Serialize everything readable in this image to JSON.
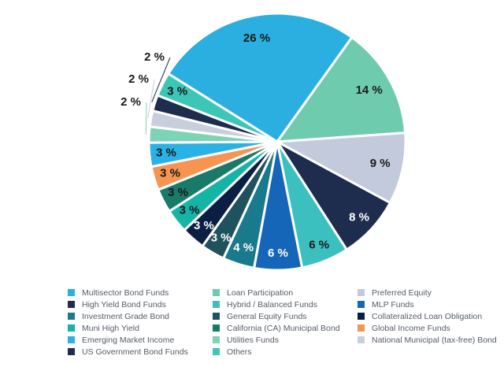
{
  "chart_data": {
    "type": "pie",
    "title": "",
    "unit": "%",
    "slices": [
      {
        "name": "Multisector Bond Funds",
        "value": 26,
        "label": "26 %",
        "color": "#2aafe0",
        "label_color": "#1a1a1a"
      },
      {
        "name": "Loan Participation",
        "value": 14,
        "label": "14 %",
        "color": "#6fcbae",
        "label_color": "#1a1a1a"
      },
      {
        "name": "Preferred Equity",
        "value": 9,
        "label": "9 %",
        "color": "#c3cadb",
        "label_color": "#1a1a1a"
      },
      {
        "name": "High Yield Bond Funds",
        "value": 8,
        "label": "8 %",
        "color": "#1e2d4e",
        "label_color": "#ffffff"
      },
      {
        "name": "Hybrid / Balanced Funds",
        "value": 6,
        "label": "6 %",
        "color": "#3cc0bf",
        "label_color": "#1a1a1a"
      },
      {
        "name": "MLP Funds",
        "value": 6,
        "label": "6 %",
        "color": "#1565b8",
        "label_color": "#ffffff"
      },
      {
        "name": "Investment Grade Bond",
        "value": 4,
        "label": "4 %",
        "color": "#187a8c",
        "label_color": "#ffffff"
      },
      {
        "name": "General Equity Funds",
        "value": 3,
        "label": "3 %",
        "color": "#1f525c",
        "label_color": "#ffffff"
      },
      {
        "name": "Collateralized Loan Obligation",
        "value": 3,
        "label": "3 %",
        "color": "#0b1f44",
        "label_color": "#ffffff"
      },
      {
        "name": "Muni High Yield",
        "value": 3,
        "label": "3 %",
        "color": "#14b4a6",
        "label_color": "#1a1a1a"
      },
      {
        "name": "California (CA) Municipal Bond",
        "value": 3,
        "label": "3 %",
        "color": "#197a6a",
        "label_color": "#1a1a1a"
      },
      {
        "name": "Global Income Funds",
        "value": 3,
        "label": "3 %",
        "color": "#f59551",
        "label_color": "#1a1a1a"
      },
      {
        "name": "Emerging Market Income",
        "value": 3,
        "label": "3 %",
        "color": "#2ab2e6",
        "label_color": "#1a1a1a"
      },
      {
        "name": "Utilities Funds",
        "value": 2,
        "label": "2 %",
        "color": "#7dd3b6",
        "label_color": "#1a1a1a",
        "outside": true
      },
      {
        "name": "National Municipal (tax-free) Bond",
        "value": 2,
        "label": "2 %",
        "color": "#c8cedc",
        "label_color": "#1a1a1a",
        "outside": true
      },
      {
        "name": "US Government Bond Funds",
        "value": 2,
        "label": "2 %",
        "color": "#1e2d4e",
        "label_color": "#1a1a1a",
        "outside": true
      },
      {
        "name": "Others",
        "value": 3,
        "label": "3 %",
        "color": "#3cc6b8",
        "label_color": "#1a1a1a"
      }
    ],
    "legend": [
      "Multisector Bond Funds",
      "Loan Participation",
      "Preferred Equity",
      "High Yield Bond Funds",
      "Hybrid / Balanced Funds",
      "MLP Funds",
      "Investment Grade Bond",
      "General Equity Funds",
      "Collateralized Loan Obligation",
      "Muni High Yield",
      "California (CA) Municipal Bond",
      "Global Income Funds",
      "Emerging Market Income",
      "Utilities Funds",
      "National Municipal (tax-free) Bond",
      "US Government Bond Funds",
      "Others"
    ],
    "legend_placement": "bottom"
  }
}
